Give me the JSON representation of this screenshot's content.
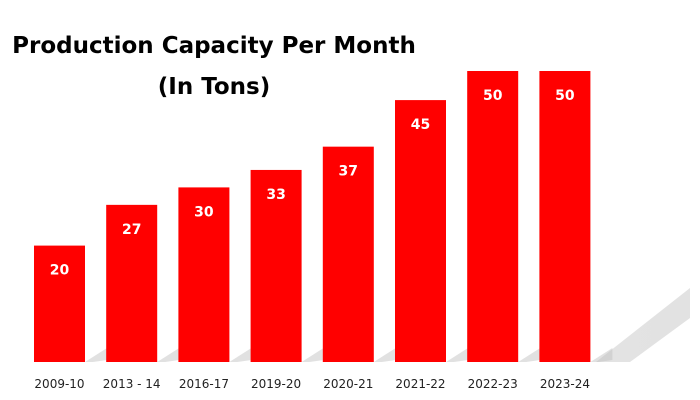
{
  "chart_data": {
    "type": "bar",
    "title": "Production Capacity Per Month",
    "subtitle": "(In Tons)",
    "categories": [
      "2009-10",
      "2013 - 14",
      "2016-17",
      "2019-20",
      "2020-21",
      "2021-22",
      "2022-23",
      "2023-24"
    ],
    "values": [
      20,
      27,
      30,
      33,
      37,
      45,
      50,
      50
    ],
    "xlabel": "",
    "ylabel": "",
    "ylim": [
      0,
      50
    ],
    "grid": false,
    "legend": "none",
    "bar_color": "#ff0000",
    "data_label_color": "#ffffff"
  }
}
